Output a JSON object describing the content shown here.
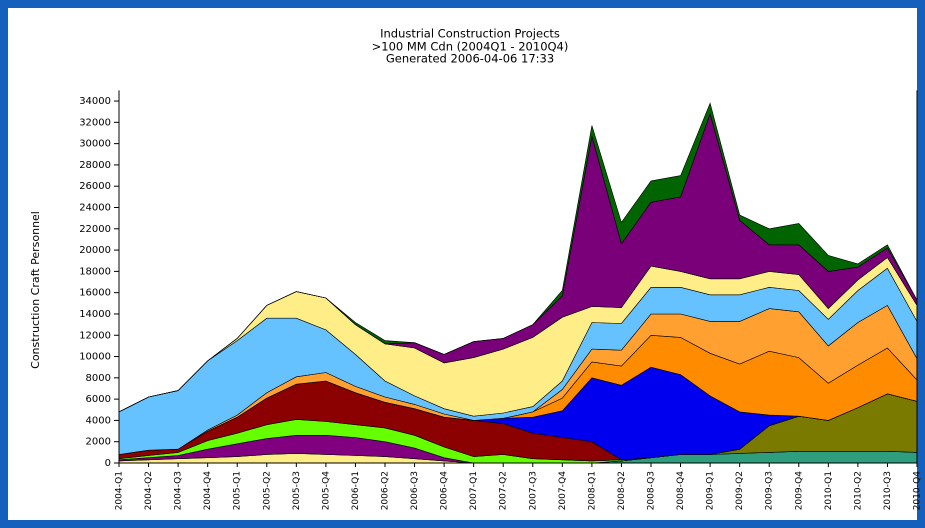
{
  "chart_data": {
    "type": "stacked_area",
    "title": "Industrial Construction Projects",
    "subtitle": ">100 MM Cdn (2004Q1 - 2010Q4)",
    "generated": "Generated 2006-04-06 17:33",
    "y_label": "Construction Craft Personnel",
    "categories": [
      "2004-Q1",
      "2004-Q2",
      "2004-Q3",
      "2004-Q4",
      "2005-Q1",
      "2005-Q2",
      "2005-Q3",
      "2005-Q4",
      "2006-Q1",
      "2006-Q2",
      "2006-Q3",
      "2006-Q4",
      "2007-Q1",
      "2007-Q2",
      "2007-Q3",
      "2007-Q4",
      "2008-Q1",
      "2008-Q2",
      "2008-Q3",
      "2008-Q4",
      "2009-Q1",
      "2009-Q2",
      "2009-Q3",
      "2009-Q4",
      "2010-Q1",
      "2010-Q2",
      "2010-Q3",
      "2010-Q4"
    ],
    "ylim": [
      0,
      35000
    ],
    "yticks": [
      0,
      2000,
      4000,
      6000,
      8000,
      10000,
      12000,
      14000,
      16000,
      18000,
      20000,
      22000,
      24000,
      26000,
      28000,
      30000,
      32000,
      34000
    ],
    "series": [
      {
        "color": "#2e9e7e",
        "values": [
          0,
          0,
          0,
          0,
          0,
          0,
          0,
          0,
          0,
          0,
          0,
          0,
          0,
          0,
          0,
          0,
          0,
          200,
          500,
          800,
          800,
          900,
          1000,
          1100,
          1100,
          1100,
          1100,
          1000
        ]
      },
      {
        "color": "#7a7a00",
        "values": [
          0,
          0,
          0,
          0,
          0,
          0,
          0,
          0,
          0,
          0,
          0,
          0,
          0,
          0,
          0,
          0,
          0,
          0,
          0,
          0,
          0,
          400,
          2500,
          3300,
          2900,
          4100,
          5400,
          4800
        ]
      },
      {
        "color": "#ffee88",
        "values": [
          200,
          300,
          400,
          500,
          600,
          800,
          900,
          800,
          700,
          600,
          400,
          200,
          0,
          0,
          0,
          0,
          0,
          0,
          0,
          0,
          0,
          0,
          0,
          0,
          0,
          0,
          0,
          0
        ]
      },
      {
        "color": "#800080",
        "values": [
          100,
          200,
          300,
          800,
          1200,
          1500,
          1700,
          1800,
          1700,
          1400,
          1000,
          300,
          0,
          0,
          0,
          0,
          0,
          0,
          0,
          0,
          0,
          0,
          0,
          0,
          0,
          0,
          0,
          0
        ]
      },
      {
        "color": "#66ff00",
        "values": [
          100,
          200,
          300,
          800,
          1000,
          1300,
          1500,
          1300,
          1200,
          1300,
          1200,
          1000,
          600,
          800,
          400,
          300,
          200,
          100,
          0,
          0,
          0,
          0,
          0,
          0,
          0,
          0,
          0,
          0
        ]
      },
      {
        "color": "#8b0000",
        "values": [
          400,
          500,
          300,
          900,
          1500,
          2500,
          3300,
          3800,
          3000,
          2400,
          2500,
          2800,
          3400,
          2900,
          2400,
          2100,
          1800,
          0,
          0,
          0,
          0,
          0,
          0,
          0,
          0,
          0,
          0,
          0
        ]
      },
      {
        "color": "#0000ee",
        "values": [
          0,
          0,
          0,
          0,
          0,
          0,
          0,
          0,
          0,
          0,
          0,
          0,
          0,
          500,
          1500,
          2500,
          6000,
          7000,
          8500,
          7500,
          5500,
          3500,
          1000,
          0,
          0,
          0,
          0,
          0
        ]
      },
      {
        "color": "#ff8c00",
        "values": [
          0,
          0,
          0,
          0,
          0,
          0,
          0,
          0,
          0,
          0,
          0,
          0,
          0,
          0,
          500,
          1200,
          1500,
          1800,
          3000,
          3500,
          4000,
          4500,
          6000,
          5500,
          3500,
          4000,
          4300,
          2000
        ]
      },
      {
        "color": "#ffa030",
        "values": [
          0,
          0,
          0,
          100,
          200,
          500,
          700,
          800,
          600,
          500,
          400,
          300,
          0,
          0,
          0,
          800,
          1200,
          1500,
          2000,
          2200,
          3000,
          4000,
          4000,
          4300,
          3500,
          4000,
          4000,
          2000
        ]
      },
      {
        "color": "#66c2ff",
        "values": [
          4000,
          5000,
          5500,
          6500,
          7000,
          7000,
          5500,
          4000,
          3000,
          1500,
          800,
          500,
          400,
          500,
          500,
          800,
          2500,
          2500,
          2500,
          2500,
          2500,
          2500,
          2000,
          2000,
          2500,
          3000,
          3500,
          3500
        ]
      },
      {
        "color": "#ffee88",
        "values": [
          0,
          0,
          0,
          0,
          200,
          1200,
          2500,
          3000,
          2800,
          3500,
          4500,
          4300,
          5500,
          6000,
          6500,
          6000,
          1500,
          1500,
          2000,
          1500,
          1500,
          1500,
          1500,
          1500,
          1000,
          1000,
          1000,
          1500
        ]
      },
      {
        "color": "#7a007a",
        "values": [
          0,
          0,
          0,
          0,
          0,
          0,
          0,
          0,
          0,
          0,
          500,
          800,
          1500,
          1000,
          1200,
          2000,
          16000,
          6000,
          6000,
          7000,
          15500,
          5500,
          2500,
          2800,
          3500,
          1200,
          900,
          500
        ]
      },
      {
        "color": "#006400",
        "values": [
          0,
          0,
          0,
          0,
          0,
          0,
          0,
          0,
          200,
          300,
          0,
          0,
          0,
          0,
          0,
          500,
          1000,
          2000,
          2000,
          2000,
          1000,
          500,
          1500,
          2000,
          1500,
          300,
          300,
          0
        ]
      }
    ]
  }
}
